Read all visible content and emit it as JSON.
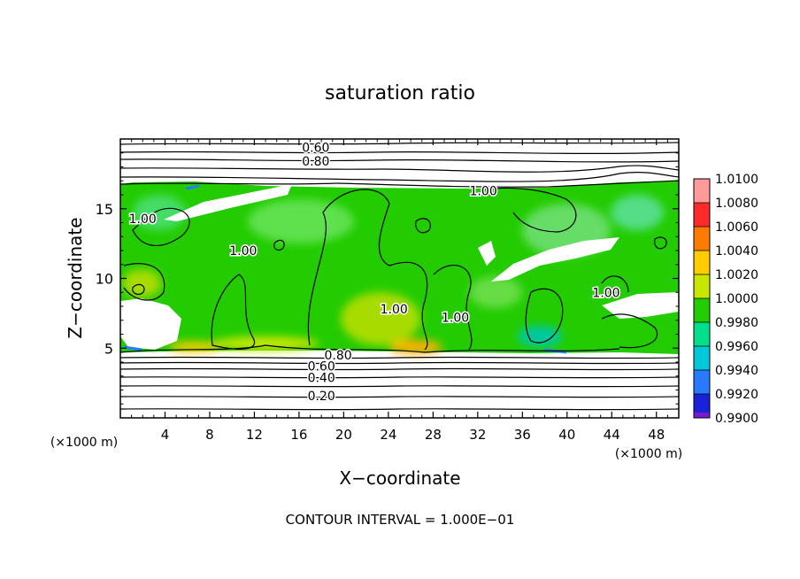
{
  "chart_data": {
    "type": "heatmap",
    "title": "saturation ratio",
    "xlabel": "X−coordinate",
    "ylabel": "Z−coordinate",
    "x_unit": "(×1000 m)",
    "z_unit": "(×1000 m)",
    "xlim": [
      0,
      50
    ],
    "ylim": [
      0,
      20
    ],
    "x_ticks": [
      4,
      8,
      12,
      16,
      20,
      24,
      28,
      32,
      36,
      40,
      44,
      48
    ],
    "y_ticks": [
      5,
      10,
      15
    ],
    "colorbar": {
      "labels": [
        "1.0100",
        "1.0080",
        "1.0060",
        "1.0040",
        "1.0020",
        "1.0000",
        "0.9980",
        "0.9960",
        "0.9940",
        "0.9920",
        "0.9900"
      ],
      "colors": [
        "#ff9a9a",
        "#ff2a2a",
        "#ff7a00",
        "#ffcc00",
        "#c8e600",
        "#22cc00",
        "#00e08a",
        "#00c8d8",
        "#2a7aff",
        "#1a22d8",
        "#7a1ad0"
      ]
    },
    "contour_labels": [
      {
        "text": "0.60",
        "x": 17.5,
        "z": 19.4
      },
      {
        "text": "0.80",
        "x": 17.5,
        "z": 18.4
      },
      {
        "text": "1.00",
        "x": 32.5,
        "z": 16.3
      },
      {
        "text": "1.00",
        "x": 2.0,
        "z": 14.3
      },
      {
        "text": "1.00",
        "x": 11.0,
        "z": 12.0
      },
      {
        "text": "1.00",
        "x": 24.5,
        "z": 7.8
      },
      {
        "text": "1.00",
        "x": 30.0,
        "z": 7.2
      },
      {
        "text": "1.00",
        "x": 43.5,
        "z": 9.0
      },
      {
        "text": "0.80",
        "x": 19.5,
        "z": 4.5
      },
      {
        "text": "0.60",
        "x": 18.0,
        "z": 3.7
      },
      {
        "text": "0.40",
        "x": 18.0,
        "z": 2.9
      },
      {
        "text": "0.20",
        "x": 18.0,
        "z": 1.6
      }
    ],
    "note": "CONTOUR INTERVAL = 1.000E−01"
  }
}
